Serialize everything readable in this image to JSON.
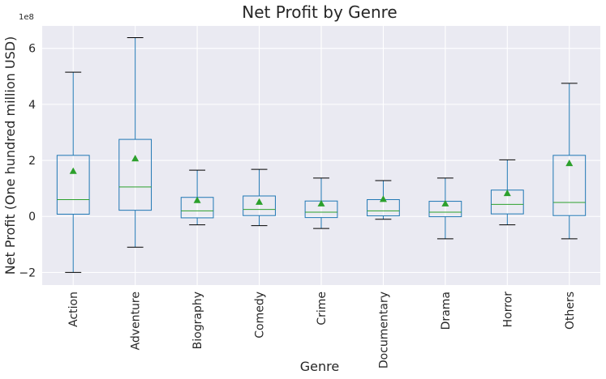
{
  "chart_data": {
    "type": "box",
    "title": "Net Profit by Genre",
    "xlabel": "Genre",
    "ylabel": "Net Profit (One hundred million USD)",
    "y_offset_label": "1e8",
    "y_scale_factor": 100000000,
    "ylim": [
      -2.45,
      6.8
    ],
    "y_ticks": [
      -2,
      0,
      2,
      4,
      6
    ],
    "y_tick_labels": [
      "−2",
      "0",
      "2",
      "4",
      "6"
    ],
    "grid": true,
    "colors": {
      "box": "#1f77b4",
      "median": "#2ca02c",
      "mean": "#2ca02c",
      "whisker_cap": "#000000",
      "plot_bg": "#eaeaf2",
      "grid": "#ffffff"
    },
    "categories": [
      "Action",
      "Adventure",
      "Biography",
      "Comedy",
      "Crime",
      "Documentary",
      "Drama",
      "Horror",
      "Others"
    ],
    "boxes": [
      {
        "whisker_low": -2.0,
        "q1": 0.08,
        "median": 0.6,
        "q3": 2.18,
        "whisker_high": 5.15,
        "mean": 1.62
      },
      {
        "whisker_low": -1.1,
        "q1": 0.22,
        "median": 1.05,
        "q3": 2.75,
        "whisker_high": 6.38,
        "mean": 2.07
      },
      {
        "whisker_low": -0.3,
        "q1": -0.05,
        "median": 0.2,
        "q3": 0.68,
        "whisker_high": 1.65,
        "mean": 0.58
      },
      {
        "whisker_low": -0.33,
        "q1": 0.03,
        "median": 0.25,
        "q3": 0.73,
        "whisker_high": 1.68,
        "mean": 0.52
      },
      {
        "whisker_low": -0.43,
        "q1": -0.04,
        "median": 0.15,
        "q3": 0.55,
        "whisker_high": 1.37,
        "mean": 0.46
      },
      {
        "whisker_low": -0.1,
        "q1": 0.02,
        "median": 0.2,
        "q3": 0.6,
        "whisker_high": 1.28,
        "mean": 0.62
      },
      {
        "whisker_low": -0.8,
        "q1": -0.01,
        "median": 0.15,
        "q3": 0.54,
        "whisker_high": 1.37,
        "mean": 0.46
      },
      {
        "whisker_low": -0.3,
        "q1": 0.09,
        "median": 0.43,
        "q3": 0.94,
        "whisker_high": 2.02,
        "mean": 0.83
      },
      {
        "whisker_low": -0.8,
        "q1": 0.03,
        "median": 0.5,
        "q3": 2.18,
        "whisker_high": 4.75,
        "mean": 1.9
      }
    ]
  }
}
